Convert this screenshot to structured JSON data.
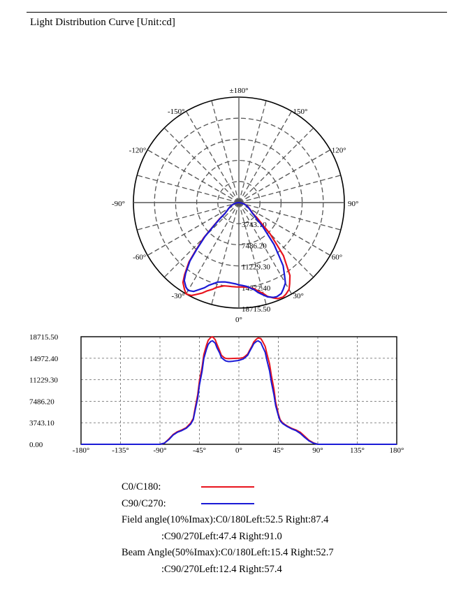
{
  "title": "Light Distribution Curve [Unit:cd]",
  "colors": {
    "c0": "#e8141e",
    "c90": "#1a1ad6",
    "grid": "#555555",
    "axis": "#000000"
  },
  "chart_data": [
    {
      "type": "polar",
      "angle_labels": [
        {
          "deg": 180,
          "text": "±180°"
        },
        {
          "deg": 150,
          "text": "150°"
        },
        {
          "deg": -150,
          "text": "-150°"
        },
        {
          "deg": 120,
          "text": "120°"
        },
        {
          "deg": -120,
          "text": "-120°"
        },
        {
          "deg": 90,
          "text": "90°"
        },
        {
          "deg": -90,
          "text": "-90°"
        },
        {
          "deg": 60,
          "text": "60°"
        },
        {
          "deg": -60,
          "text": "-60°"
        },
        {
          "deg": 30,
          "text": "30°"
        },
        {
          "deg": -30,
          "text": "-30°"
        },
        {
          "deg": 0,
          "text": "0°"
        }
      ],
      "radial_ticks": [
        "3743.10",
        "7486.20",
        "11229.30",
        "14972.40",
        "18715.50"
      ],
      "rmax": 18715.5,
      "series": [
        {
          "name": "C0/C180",
          "color_key": "c0",
          "points": [
            [
              -90,
              0
            ],
            [
              -85,
              300
            ],
            [
              -80,
              500
            ],
            [
              -75,
              900
            ],
            [
              -70,
              1300
            ],
            [
              -65,
              1700
            ],
            [
              -60,
              2100
            ],
            [
              -55,
              2600
            ],
            [
              -52,
              3200
            ],
            [
              -50,
              4500
            ],
            [
              -47,
              6500
            ],
            [
              -45,
              8800
            ],
            [
              -42,
              11500
            ],
            [
              -40,
              13800
            ],
            [
              -37,
              16000
            ],
            [
              -35,
              17300
            ],
            [
              -32,
              18200
            ],
            [
              -30,
              18715
            ],
            [
              -27,
              18500
            ],
            [
              -25,
              18000
            ],
            [
              -22,
              17300
            ],
            [
              -20,
              16700
            ],
            [
              -17,
              16100
            ],
            [
              -15,
              15600
            ],
            [
              -12,
              15200
            ],
            [
              -10,
              15000
            ],
            [
              -7,
              14950
            ],
            [
              -5,
              14960
            ],
            [
              -2,
              14970
            ],
            [
              0,
              14972
            ],
            [
              2,
              14980
            ],
            [
              5,
              15050
            ],
            [
              7,
              15200
            ],
            [
              10,
              15500
            ],
            [
              12,
              16000
            ],
            [
              15,
              16700
            ],
            [
              17,
              17400
            ],
            [
              20,
              18000
            ],
            [
              22,
              18400
            ],
            [
              25,
              18500
            ],
            [
              27,
              18300
            ],
            [
              30,
              17800
            ],
            [
              32,
              17000
            ],
            [
              35,
              15800
            ],
            [
              37,
              14200
            ],
            [
              40,
              12300
            ],
            [
              42,
              10100
            ],
            [
              45,
              7800
            ],
            [
              47,
              5800
            ],
            [
              50,
              4200
            ],
            [
              52,
              3200
            ],
            [
              55,
              2700
            ],
            [
              60,
              2200
            ],
            [
              65,
              1800
            ],
            [
              70,
              1400
            ],
            [
              75,
              1000
            ],
            [
              80,
              600
            ],
            [
              85,
              300
            ],
            [
              90,
              0
            ]
          ]
        },
        {
          "name": "C90/C270",
          "color_key": "c90",
          "points": [
            [
              -90,
              0
            ],
            [
              -85,
              300
            ],
            [
              -80,
              500
            ],
            [
              -75,
              900
            ],
            [
              -70,
              1300
            ],
            [
              -65,
              1700
            ],
            [
              -60,
              2100
            ],
            [
              -55,
              2600
            ],
            [
              -52,
              3100
            ],
            [
              -50,
              4200
            ],
            [
              -47,
              6200
            ],
            [
              -45,
              8500
            ],
            [
              -42,
              11200
            ],
            [
              -40,
              13500
            ],
            [
              -37,
              15700
            ],
            [
              -35,
              16900
            ],
            [
              -32,
              17700
            ],
            [
              -30,
              18000
            ],
            [
              -27,
              17700
            ],
            [
              -25,
              17100
            ],
            [
              -22,
              16300
            ],
            [
              -20,
              15600
            ],
            [
              -17,
              15000
            ],
            [
              -15,
              14600
            ],
            [
              -12,
              14400
            ],
            [
              -10,
              14300
            ],
            [
              -7,
              14300
            ],
            [
              -5,
              14350
            ],
            [
              -2,
              14450
            ],
            [
              0,
              14600
            ],
            [
              2,
              14700
            ],
            [
              5,
              14900
            ],
            [
              7,
              15200
            ],
            [
              10,
              15700
            ],
            [
              12,
              16300
            ],
            [
              15,
              17000
            ],
            [
              17,
              17500
            ],
            [
              20,
              17900
            ],
            [
              22,
              18000
            ],
            [
              25,
              17800
            ],
            [
              27,
              17300
            ],
            [
              30,
              16500
            ],
            [
              32,
              15300
            ],
            [
              35,
              13700
            ],
            [
              37,
              11800
            ],
            [
              40,
              9700
            ],
            [
              42,
              7700
            ],
            [
              45,
              5900
            ],
            [
              47,
              4500
            ],
            [
              50,
              3600
            ],
            [
              52,
              3000
            ],
            [
              55,
              2600
            ],
            [
              60,
              2100
            ],
            [
              65,
              1700
            ],
            [
              70,
              1300
            ],
            [
              75,
              900
            ],
            [
              80,
              500
            ],
            [
              85,
              250
            ],
            [
              90,
              0
            ]
          ]
        }
      ]
    },
    {
      "type": "line",
      "x_ticks": [
        "-180°",
        "-135°",
        "-90°",
        "-45°",
        "0°",
        "45°",
        "90°",
        "135°",
        "180°"
      ],
      "y_ticks": [
        "0.00",
        "3743.10",
        "7486.20",
        "11229.30",
        "14972.40",
        "18715.50"
      ],
      "xlim": [
        -180,
        180
      ],
      "ylim": [
        0,
        18715.5
      ],
      "grid": true,
      "series": [
        {
          "name": "C0/C180",
          "color_key": "c0",
          "points": [
            [
              -180,
              0
            ],
            [
              -90,
              0
            ],
            [
              -85,
              200
            ],
            [
              -80,
              900
            ],
            [
              -75,
              1700
            ],
            [
              -70,
              2200
            ],
            [
              -65,
              2500
            ],
            [
              -60,
              2900
            ],
            [
              -55,
              3700
            ],
            [
              -52,
              4500
            ],
            [
              -50,
              6200
            ],
            [
              -47,
              8600
            ],
            [
              -45,
              11000
            ],
            [
              -42,
              13400
            ],
            [
              -40,
              15600
            ],
            [
              -37,
              17200
            ],
            [
              -35,
              18100
            ],
            [
              -32,
              18600
            ],
            [
              -30,
              18715
            ],
            [
              -27,
              18200
            ],
            [
              -25,
              17400
            ],
            [
              -22,
              16300
            ],
            [
              -20,
              15500
            ],
            [
              -17,
              15100
            ],
            [
              -15,
              14950
            ],
            [
              -12,
              14900
            ],
            [
              -10,
              14920
            ],
            [
              -7,
              14940
            ],
            [
              -5,
              14950
            ],
            [
              -2,
              14960
            ],
            [
              0,
              14972
            ],
            [
              2,
              15000
            ],
            [
              5,
              15100
            ],
            [
              7,
              15300
            ],
            [
              10,
              15700
            ],
            [
              12,
              16300
            ],
            [
              15,
              17100
            ],
            [
              17,
              17800
            ],
            [
              20,
              18300
            ],
            [
              22,
              18500
            ],
            [
              25,
              18400
            ],
            [
              27,
              17900
            ],
            [
              30,
              17000
            ],
            [
              32,
              15700
            ],
            [
              35,
              14000
            ],
            [
              37,
              12000
            ],
            [
              40,
              9600
            ],
            [
              42,
              7300
            ],
            [
              45,
              5300
            ],
            [
              47,
              4300
            ],
            [
              50,
              3700
            ],
            [
              55,
              3200
            ],
            [
              60,
              2800
            ],
            [
              65,
              2500
            ],
            [
              70,
              2100
            ],
            [
              75,
              1400
            ],
            [
              80,
              700
            ],
            [
              85,
              250
            ],
            [
              90,
              0
            ],
            [
              180,
              0
            ]
          ]
        },
        {
          "name": "C90/C270",
          "color_key": "c90",
          "points": [
            [
              -180,
              0
            ],
            [
              -90,
              0
            ],
            [
              -85,
              200
            ],
            [
              -80,
              800
            ],
            [
              -75,
              1600
            ],
            [
              -70,
              2100
            ],
            [
              -65,
              2400
            ],
            [
              -60,
              2800
            ],
            [
              -55,
              3500
            ],
            [
              -52,
              4300
            ],
            [
              -50,
              5800
            ],
            [
              -47,
              8000
            ],
            [
              -45,
              10300
            ],
            [
              -42,
              12700
            ],
            [
              -40,
              14900
            ],
            [
              -37,
              16500
            ],
            [
              -35,
              17400
            ],
            [
              -32,
              17900
            ],
            [
              -30,
              18000
            ],
            [
              -27,
              17600
            ],
            [
              -25,
              16800
            ],
            [
              -22,
              15900
            ],
            [
              -20,
              15100
            ],
            [
              -17,
              14700
            ],
            [
              -15,
              14500
            ],
            [
              -12,
              14400
            ],
            [
              -10,
              14400
            ],
            [
              -7,
              14450
            ],
            [
              -5,
              14500
            ],
            [
              -2,
              14550
            ],
            [
              0,
              14600
            ],
            [
              2,
              14700
            ],
            [
              5,
              14850
            ],
            [
              7,
              15100
            ],
            [
              10,
              15500
            ],
            [
              12,
              16100
            ],
            [
              15,
              16900
            ],
            [
              17,
              17500
            ],
            [
              20,
              17900
            ],
            [
              22,
              18000
            ],
            [
              25,
              17700
            ],
            [
              27,
              17000
            ],
            [
              30,
              16000
            ],
            [
              32,
              14600
            ],
            [
              35,
              12800
            ],
            [
              37,
              10800
            ],
            [
              40,
              8600
            ],
            [
              42,
              6700
            ],
            [
              45,
              5000
            ],
            [
              47,
              4100
            ],
            [
              50,
              3600
            ],
            [
              55,
              3100
            ],
            [
              60,
              2700
            ],
            [
              65,
              2400
            ],
            [
              70,
              1900
            ],
            [
              75,
              1200
            ],
            [
              80,
              600
            ],
            [
              85,
              200
            ],
            [
              90,
              0
            ],
            [
              180,
              0
            ]
          ]
        }
      ]
    }
  ],
  "legend": {
    "c0_label": "C0/C180:",
    "c90_label": "C90/C270:",
    "field_line1": "Field angle(10%Imax):C0/180Left:52.5 Right:87.4",
    "field_line2": ":C90/270Left:47.4 Right:91.0",
    "beam_line1": "Beam Angle(50%Imax):C0/180Left:15.4 Right:52.7",
    "beam_line2": ":C90/270Left:12.4 Right:57.4"
  }
}
